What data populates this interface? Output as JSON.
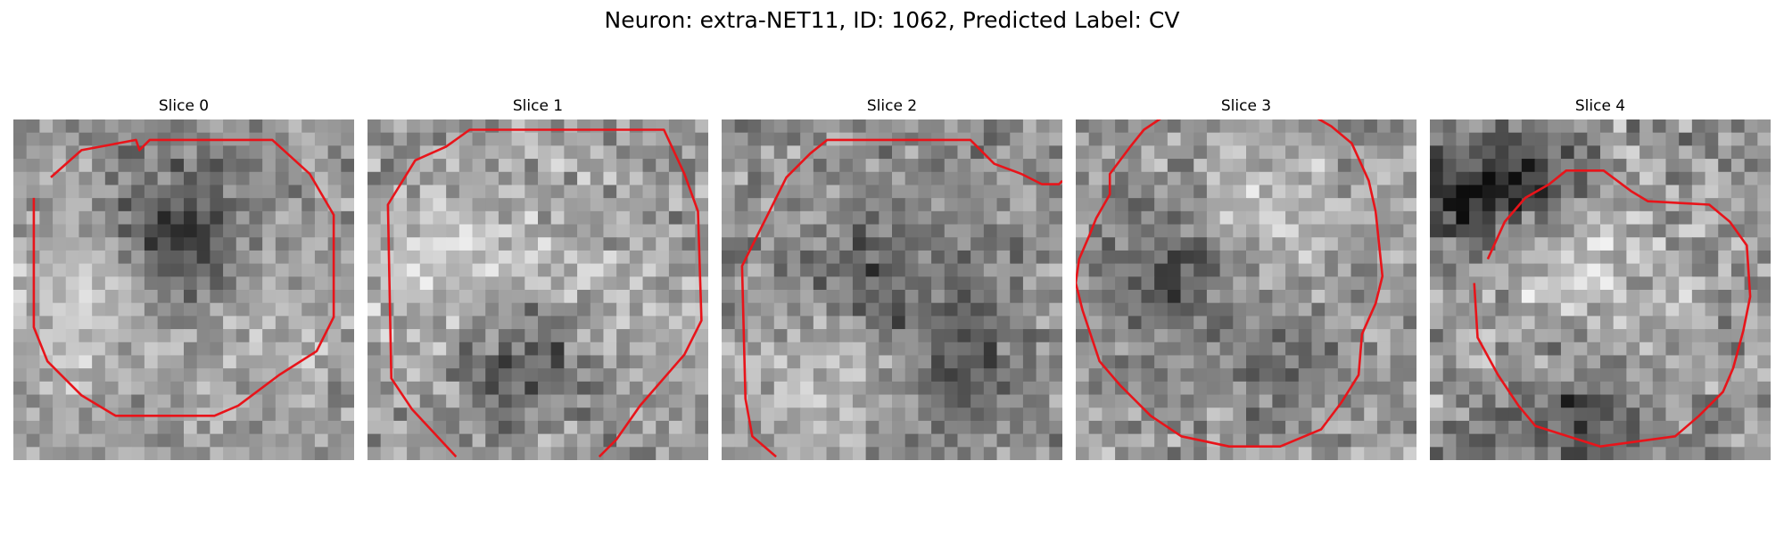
{
  "figure": {
    "title": "Neuron: extra-NET11, ID: 1062, Predicted Label: CV"
  },
  "colors": {
    "contour": "#e8141a"
  },
  "panels": [
    {
      "title": "Slice 0",
      "grid_size": 26,
      "seed": 11,
      "contrast": [
        0.38,
        0.82
      ],
      "blobs": [
        [
          0.5,
          0.35,
          0.16,
          -0.35
        ],
        [
          0.25,
          0.55,
          0.18,
          0.18
        ],
        [
          0.72,
          0.6,
          0.16,
          0.12
        ]
      ],
      "contour": [
        [
          0.11,
          0.17
        ],
        [
          0.2,
          0.09
        ],
        [
          0.36,
          0.06
        ],
        [
          0.37,
          0.09
        ],
        [
          0.4,
          0.06
        ],
        [
          0.76,
          0.06
        ],
        [
          0.87,
          0.16
        ],
        [
          0.94,
          0.28
        ],
        [
          0.94,
          0.58
        ],
        [
          0.89,
          0.68
        ],
        [
          0.78,
          0.75
        ],
        [
          0.66,
          0.84
        ],
        [
          0.59,
          0.87
        ],
        [
          0.3,
          0.87
        ],
        [
          0.2,
          0.81
        ],
        [
          0.1,
          0.71
        ],
        [
          0.06,
          0.61
        ],
        [
          0.06,
          0.23
        ]
      ]
    },
    {
      "title": "Slice 1",
      "grid_size": 26,
      "seed": 23,
      "contrast": [
        0.35,
        0.85
      ],
      "blobs": [
        [
          0.45,
          0.68,
          0.14,
          -0.32
        ],
        [
          0.3,
          0.45,
          0.2,
          0.22
        ],
        [
          0.75,
          0.5,
          0.15,
          0.1
        ]
      ],
      "contour": [
        [
          0.26,
          0.99
        ],
        [
          0.13,
          0.85
        ],
        [
          0.07,
          0.76
        ],
        [
          0.06,
          0.25
        ],
        [
          0.14,
          0.12
        ],
        [
          0.23,
          0.08
        ],
        [
          0.3,
          0.03
        ],
        [
          0.87,
          0.03
        ],
        [
          0.93,
          0.16
        ],
        [
          0.97,
          0.27
        ],
        [
          0.98,
          0.59
        ],
        [
          0.93,
          0.69
        ],
        [
          0.8,
          0.84
        ],
        [
          0.73,
          0.94
        ],
        [
          0.68,
          0.99
        ]
      ]
    },
    {
      "title": "Slice 2",
      "grid_size": 26,
      "seed": 37,
      "contrast": [
        0.33,
        0.8
      ],
      "blobs": [
        [
          0.45,
          0.48,
          0.14,
          -0.25
        ],
        [
          0.3,
          0.75,
          0.16,
          0.2
        ],
        [
          0.7,
          0.7,
          0.13,
          -0.18
        ]
      ],
      "contour": [
        [
          0.16,
          0.99
        ],
        [
          0.09,
          0.93
        ],
        [
          0.07,
          0.82
        ],
        [
          0.06,
          0.43
        ],
        [
          0.09,
          0.37
        ],
        [
          0.13,
          0.29
        ],
        [
          0.19,
          0.17
        ],
        [
          0.26,
          0.1
        ],
        [
          0.31,
          0.06
        ],
        [
          0.73,
          0.06
        ],
        [
          0.8,
          0.13
        ],
        [
          0.88,
          0.16
        ],
        [
          0.94,
          0.19
        ],
        [
          0.99,
          0.19
        ],
        [
          1.0,
          0.18
        ]
      ]
    },
    {
      "title": "Slice 3",
      "grid_size": 26,
      "seed": 53,
      "contrast": [
        0.36,
        0.84
      ],
      "blobs": [
        [
          0.3,
          0.45,
          0.16,
          -0.25
        ],
        [
          0.55,
          0.3,
          0.15,
          0.2
        ],
        [
          0.62,
          0.72,
          0.12,
          -0.15
        ]
      ],
      "contour": [
        [
          0.26,
          -0.01
        ],
        [
          0.2,
          0.03
        ],
        [
          0.16,
          0.08
        ],
        [
          0.1,
          0.16
        ],
        [
          0.1,
          0.22
        ],
        [
          0.06,
          0.29
        ],
        [
          0.04,
          0.34
        ],
        [
          0.01,
          0.41
        ],
        [
          0.0,
          0.48
        ],
        [
          0.02,
          0.56
        ],
        [
          0.07,
          0.71
        ],
        [
          0.13,
          0.78
        ],
        [
          0.22,
          0.87
        ],
        [
          0.31,
          0.93
        ],
        [
          0.45,
          0.96
        ],
        [
          0.6,
          0.96
        ],
        [
          0.72,
          0.91
        ],
        [
          0.78,
          0.83
        ],
        [
          0.83,
          0.75
        ],
        [
          0.84,
          0.63
        ],
        [
          0.88,
          0.54
        ],
        [
          0.9,
          0.46
        ],
        [
          0.88,
          0.27
        ],
        [
          0.86,
          0.18
        ],
        [
          0.81,
          0.07
        ],
        [
          0.75,
          0.02
        ],
        [
          0.68,
          -0.02
        ]
      ]
    },
    {
      "title": "Slice 4",
      "grid_size": 26,
      "seed": 71,
      "contrast": [
        0.3,
        0.86
      ],
      "blobs": [
        [
          0.1,
          0.22,
          0.12,
          -0.45
        ],
        [
          0.33,
          0.18,
          0.1,
          -0.3
        ],
        [
          0.45,
          0.85,
          0.14,
          -0.28
        ],
        [
          0.45,
          0.48,
          0.22,
          0.18
        ]
      ],
      "contour": [
        [
          0.17,
          0.41
        ],
        [
          0.22,
          0.3
        ],
        [
          0.28,
          0.23
        ],
        [
          0.35,
          0.19
        ],
        [
          0.4,
          0.15
        ],
        [
          0.51,
          0.15
        ],
        [
          0.59,
          0.21
        ],
        [
          0.64,
          0.24
        ],
        [
          0.82,
          0.25
        ],
        [
          0.88,
          0.3
        ],
        [
          0.93,
          0.37
        ],
        [
          0.94,
          0.52
        ],
        [
          0.92,
          0.62
        ],
        [
          0.89,
          0.73
        ],
        [
          0.86,
          0.8
        ],
        [
          0.79,
          0.87
        ],
        [
          0.72,
          0.93
        ],
        [
          0.5,
          0.96
        ],
        [
          0.31,
          0.9
        ],
        [
          0.26,
          0.84
        ],
        [
          0.2,
          0.75
        ],
        [
          0.14,
          0.64
        ],
        [
          0.13,
          0.48
        ]
      ]
    }
  ]
}
